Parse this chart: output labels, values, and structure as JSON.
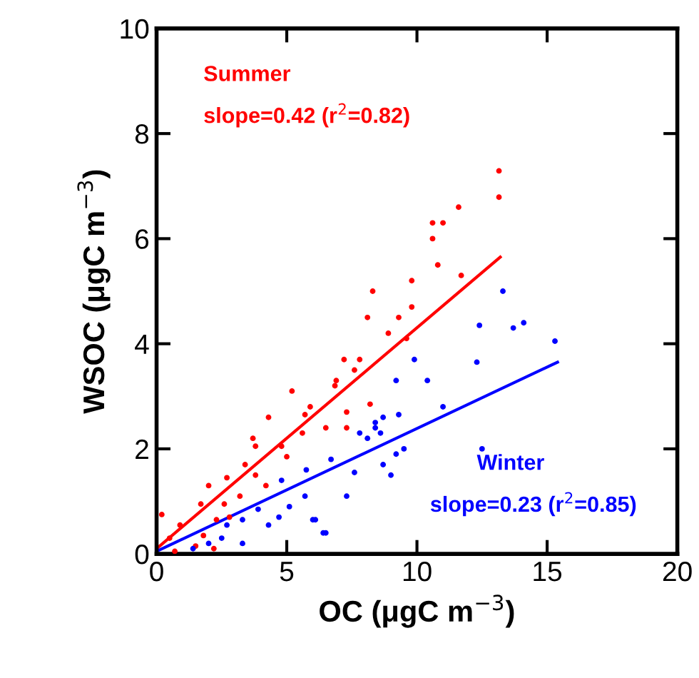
{
  "chart_data": {
    "type": "scatter",
    "xlabel": "OC (μgC m$^{−3}$)",
    "ylabel": "WSOC (μgC m$^{−3}$)",
    "xlim": [
      0,
      20
    ],
    "ylim": [
      0,
      10
    ],
    "xticks": [
      0,
      5,
      10,
      15,
      20
    ],
    "yticks": [
      0,
      2,
      4,
      6,
      8,
      10
    ],
    "grid": false,
    "legend": false,
    "marker": "circle",
    "annotations": [
      "slope=0.42 (r$^{2}$=0.82)",
      "slope=0.23 (r$^{2}$=0.85)"
    ],
    "series": [
      {
        "name": "Summer",
        "color": "#ff0000",
        "x": [
          13.15,
          13.15,
          11.6,
          10.6,
          11.0,
          10.6,
          10.8,
          11.7,
          9.8,
          8.3,
          9.8,
          9.3,
          8.1,
          8.9,
          9.6,
          7.8,
          7.6,
          6.9,
          7.3,
          7.3,
          8.2,
          6.5,
          5.2,
          5.7,
          7.2,
          6.85,
          5.9,
          4.3,
          4.8,
          3.8,
          3.7,
          3.4,
          2.7,
          2.0,
          2.6,
          1.7,
          0.2,
          0.9,
          1.8,
          2.3,
          0.5,
          3.8,
          4.2,
          5.0,
          5.6,
          3.2,
          2.8,
          1.5,
          2.2,
          0.7
        ],
        "values": [
          7.29,
          6.79,
          6.6,
          6.3,
          6.3,
          6.0,
          5.5,
          5.3,
          5.2,
          5.0,
          4.7,
          4.5,
          4.5,
          4.2,
          4.1,
          3.7,
          3.5,
          3.3,
          2.7,
          2.4,
          2.85,
          2.4,
          3.1,
          2.65,
          3.7,
          3.2,
          2.8,
          2.6,
          2.05,
          2.05,
          2.2,
          1.7,
          1.45,
          1.3,
          0.95,
          0.95,
          0.75,
          0.55,
          0.35,
          0.65,
          0.3,
          1.5,
          1.3,
          1.85,
          2.3,
          1.1,
          0.7,
          0.15,
          0.1,
          0.05
        ]
      },
      {
        "name": "Winter",
        "color": "#0000ff",
        "x": [
          13.3,
          12.4,
          13.7,
          14.1,
          15.3,
          12.3,
          12.5,
          9.9,
          10.4,
          9.2,
          11.0,
          9.3,
          8.7,
          8.4,
          8.4,
          8.6,
          7.8,
          8.1,
          9.5,
          9.2,
          8.7,
          9.0,
          6.5,
          6.1,
          6.7,
          5.75,
          4.8,
          3.9,
          3.3,
          2.7,
          3.3,
          4.3,
          5.1,
          5.7,
          6.4,
          6.0,
          2.5,
          2.0,
          1.4,
          7.6,
          7.3,
          4.7
        ],
        "values": [
          5.0,
          4.35,
          4.3,
          4.4,
          4.05,
          3.65,
          2.0,
          3.7,
          3.3,
          3.3,
          2.8,
          2.65,
          2.6,
          2.5,
          2.4,
          2.3,
          2.3,
          2.2,
          2.0,
          1.9,
          1.7,
          1.5,
          0.4,
          0.65,
          1.8,
          1.6,
          1.4,
          0.85,
          0.65,
          0.55,
          0.2,
          0.55,
          0.9,
          1.1,
          0.4,
          0.65,
          0.3,
          0.2,
          0.1,
          1.55,
          1.1,
          0.7
        ]
      },
      {
        "type": "line",
        "marker": "none",
        "color": "#ff0000",
        "x": [
          0,
          13.2
        ],
        "values": [
          0.1,
          5.65
        ]
      },
      {
        "type": "line",
        "marker": "none",
        "color": "#0000ff",
        "x": [
          0,
          15.4
        ],
        "values": [
          0.05,
          3.65
        ]
      }
    ]
  }
}
